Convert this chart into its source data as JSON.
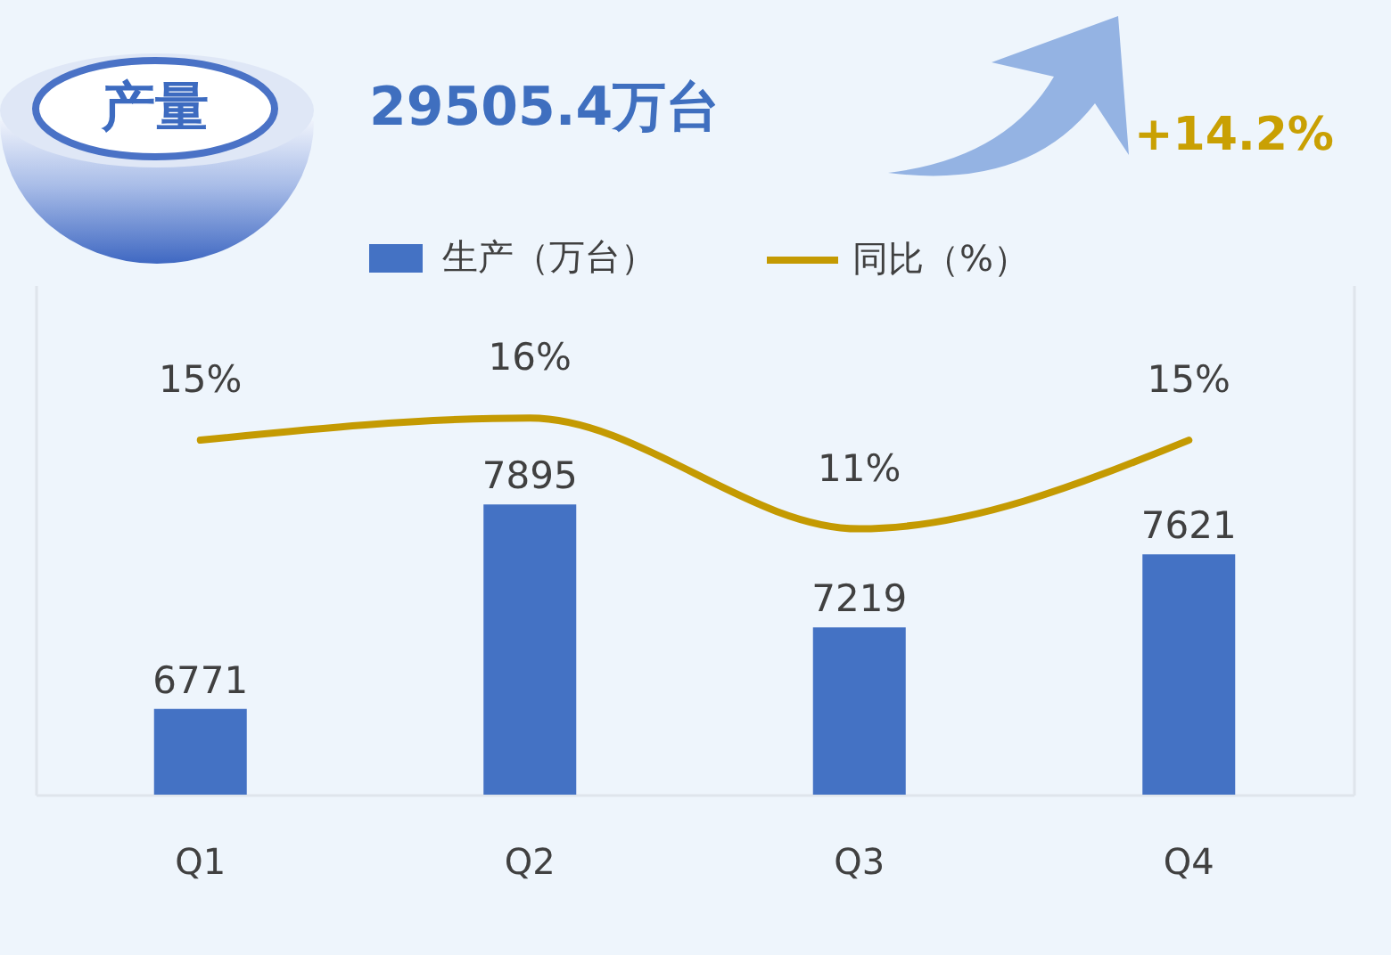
{
  "chart_data": {
    "type": "bar",
    "title": "产量",
    "subtitle": "29505.4万台",
    "annotations": [
      "+14.2%"
    ],
    "categories": [
      "Q1",
      "Q2",
      "Q3",
      "Q4"
    ],
    "series": [
      {
        "name": "生产（万台）",
        "color": "#4472c4",
        "values": [
          6771,
          7895,
          7219,
          7621
        ],
        "value_labels": [
          "6771",
          "7895",
          "7219",
          "7621"
        ]
      },
      {
        "name": "同比（%）",
        "type": "line",
        "axis": "y2",
        "color": "#c49a02",
        "values": [
          15,
          16,
          11,
          15
        ],
        "value_labels": [
          "15%",
          "16%",
          "11%",
          "15%"
        ]
      }
    ],
    "ylim": [
      6300,
      9100
    ],
    "y2lim": [
      -1,
      22
    ],
    "legend": "top",
    "tick_labels": "x"
  }
}
